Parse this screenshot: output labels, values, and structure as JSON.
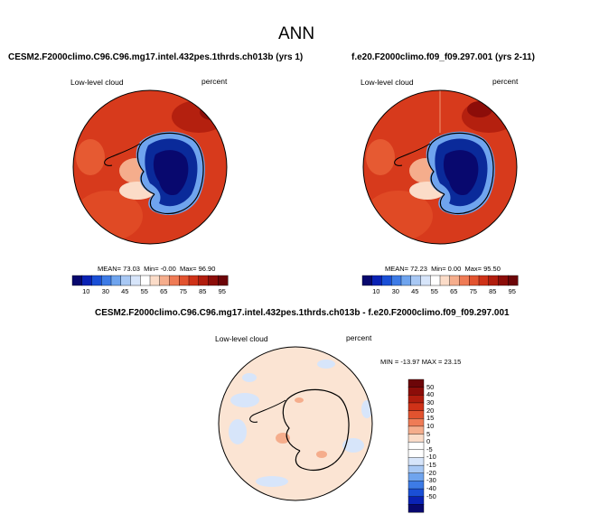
{
  "page": {
    "title": "ANN"
  },
  "panels": [
    {
      "subtitle": "CESM2.F2000climo.C96.C96.mg17.intel.432pes.1thrds.ch013b (yrs 1)",
      "variable": "Low-level cloud",
      "units": "percent",
      "stats": {
        "mean_label": "MEAN=",
        "mean": "73.03",
        "min_label": "Min=",
        "min": "-0.00",
        "max_label": "Max=",
        "max": "96.90"
      }
    },
    {
      "subtitle": "f.e20.F2000climo.f09_f09.297.001 (yrs 2-11)",
      "variable": "Low-level cloud",
      "units": "percent",
      "stats": {
        "mean_label": "MEAN=",
        "mean": "72.23",
        "min_label": "Min=",
        "min": "0.00",
        "max_label": "Max=",
        "max": "95.50"
      }
    },
    {
      "subtitle": "CESM2.F2000climo.C96.C96.mg17.intel.432pes.1thrds.ch013b - f.e20.F2000climo.f09_f09.297.001",
      "variable": "Low-level cloud",
      "units": "percent",
      "stats": {
        "min_label": "MIN =",
        "min": "-13.97",
        "max_label": "MAX =",
        "max": "23.15"
      }
    }
  ],
  "colors": {
    "abs_bar": [
      "#08086e",
      "#0a22b4",
      "#1a4fd6",
      "#3d7be6",
      "#6fa4ee",
      "#a8c8f4",
      "#d7e5fa",
      "#ffffff",
      "#fbdcc8",
      "#f5ad8c",
      "#ef7b55",
      "#e2532f",
      "#cf3218",
      "#b11d0e",
      "#8c0d09",
      "#6c0508"
    ],
    "diff_bar": [
      "#08086e",
      "#0a22b4",
      "#1a4fd6",
      "#3d7be6",
      "#6fa4ee",
      "#a8c8f4",
      "#d7e5fa",
      "#ffffff",
      "#ffffff",
      "#fbdcc8",
      "#f5ad8c",
      "#ef7b55",
      "#e2532f",
      "#cf3218",
      "#b11d0e",
      "#8c0d09",
      "#6c0508"
    ],
    "ocean_high": "#d73a1c",
    "antarctic_low": "#0a2a9a",
    "diff_background": "#fbe4d3"
  },
  "chart_data": [
    {
      "type": "heatmap",
      "projection": "south-polar-stereographic",
      "title": "CESM2.F2000climo.C96.C96.mg17.intel.432pes.1thrds.ch013b (yrs 1)",
      "variable": "Low-level cloud",
      "units": "percent",
      "colorbar_ticks": [
        "10",
        "30",
        "45",
        "55",
        "65",
        "75",
        "85",
        "95"
      ],
      "colorbar_levels": [
        5,
        10,
        15,
        20,
        25,
        30,
        35,
        40,
        45,
        50,
        55,
        60,
        65,
        70,
        75,
        80,
        85,
        90,
        95
      ],
      "mean": 73.03,
      "min": -0.0,
      "max": 96.9
    },
    {
      "type": "heatmap",
      "projection": "south-polar-stereographic",
      "title": "f.e20.F2000climo.f09_f09.297.001 (yrs 2-11)",
      "variable": "Low-level cloud",
      "units": "percent",
      "colorbar_ticks": [
        "10",
        "30",
        "45",
        "55",
        "65",
        "75",
        "85",
        "95"
      ],
      "mean": 72.23,
      "min": 0.0,
      "max": 95.5
    },
    {
      "type": "heatmap",
      "projection": "south-polar-stereographic",
      "title": "CESM2.F2000climo.C96.C96.mg17.intel.432pes.1thrds.ch013b - f.e20.F2000climo.f09_f09.297.001",
      "variable": "Low-level cloud",
      "units": "percent",
      "colorbar_ticks": [
        "50",
        "40",
        "30",
        "20",
        "15",
        "10",
        "5",
        "0",
        "-5",
        "-10",
        "-15",
        "-20",
        "-30",
        "-40",
        "-50"
      ],
      "min": -13.97,
      "max": 23.15
    }
  ]
}
